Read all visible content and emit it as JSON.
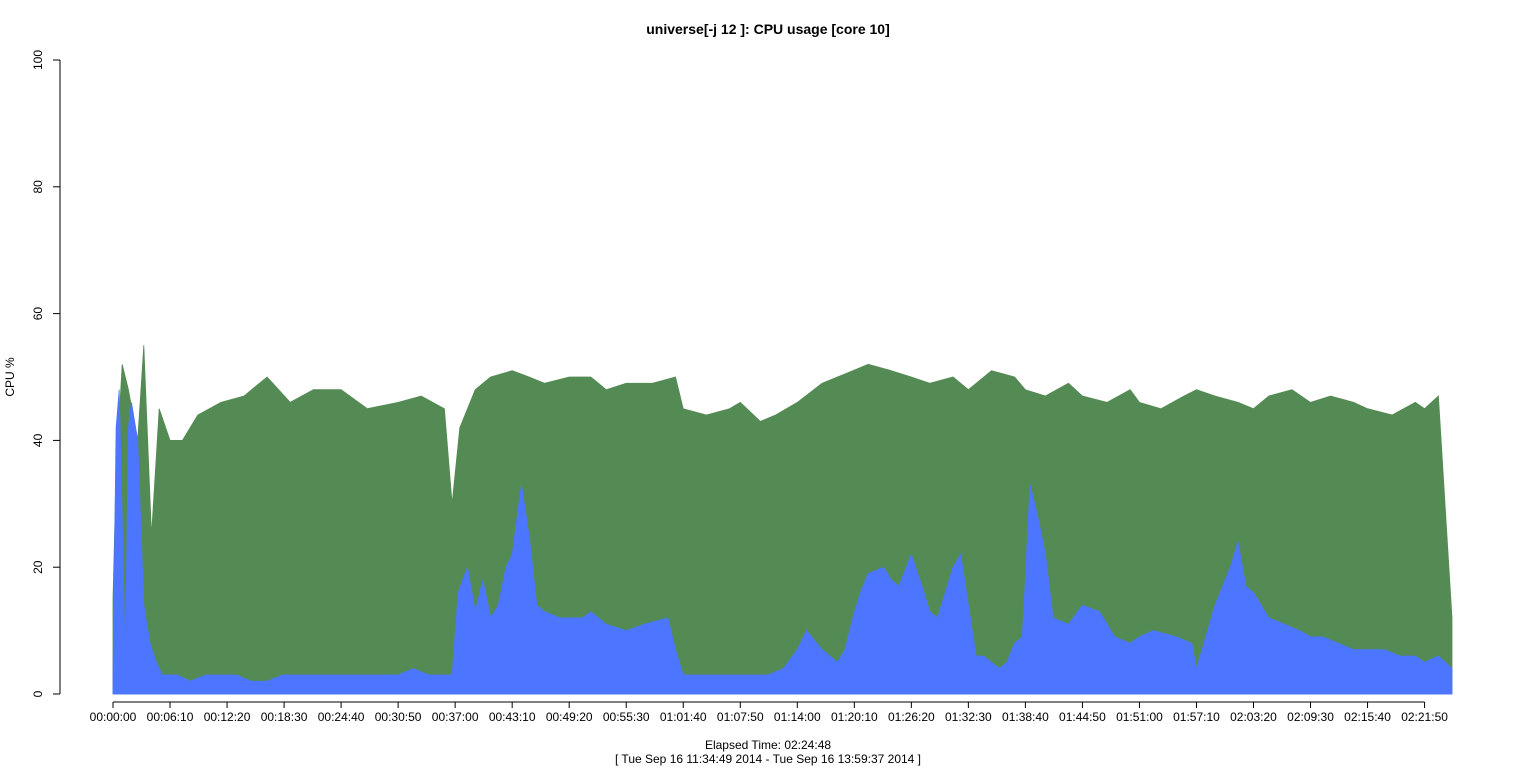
{
  "chart_data": {
    "type": "area",
    "title": "universe[-j 12  ]: CPU usage [core 10]",
    "xlabel": "Elapsed Time: 02:24:48",
    "xlabel_sub": "[ Tue Sep 16 11:34:49 2014 - Tue Sep 16 13:59:37 2014 ]",
    "ylabel": "CPU %",
    "ylim": [
      0,
      100
    ],
    "y_ticks": [
      0,
      20,
      40,
      60,
      80,
      100
    ],
    "x_unit": "seconds",
    "xlim": [
      0,
      8688
    ],
    "x_tick_labels": [
      "00:00:00",
      "00:06:10",
      "00:12:20",
      "00:18:30",
      "00:24:40",
      "00:30:50",
      "00:37:00",
      "00:43:10",
      "00:49:20",
      "00:55:30",
      "01:01:40",
      "01:07:50",
      "01:14:00",
      "01:20:10",
      "01:26:20",
      "01:32:30",
      "01:38:40",
      "01:44:50",
      "01:51:00",
      "01:57:10",
      "02:03:20",
      "02:09:30",
      "02:15:40",
      "02:21:50"
    ],
    "x_ticks_seconds": [
      0,
      370,
      740,
      1110,
      1480,
      1850,
      2220,
      2590,
      2960,
      3330,
      3700,
      4070,
      4440,
      4810,
      5180,
      5550,
      5920,
      6290,
      6660,
      7030,
      7400,
      7770,
      8140,
      8510
    ],
    "grid": false,
    "series": [
      {
        "name": "",
        "color": "#548b54",
        "x": [
          0,
          20,
          60,
          100,
          160,
          200,
          250,
          300,
          370,
          450,
          550,
          700,
          850,
          1000,
          1150,
          1300,
          1480,
          1650,
          1850,
          2000,
          2150,
          2200,
          2250,
          2350,
          2450,
          2590,
          2700,
          2800,
          2960,
          3100,
          3200,
          3330,
          3500,
          3650,
          3700,
          3850,
          4000,
          4070,
          4200,
          4300,
          4440,
          4600,
          4800,
          4900,
          5050,
          5180,
          5300,
          5450,
          5550,
          5700,
          5850,
          5920,
          6050,
          6200,
          6290,
          6450,
          6600,
          6660,
          6800,
          6950,
          7030,
          7150,
          7300,
          7400,
          7500,
          7650,
          7770,
          7900,
          8050,
          8140,
          8300,
          8450,
          8510,
          8600,
          8688
        ],
        "values": [
          15,
          35,
          52,
          48,
          40,
          55,
          25,
          45,
          40,
          40,
          44,
          46,
          47,
          50,
          46,
          48,
          48,
          45,
          46,
          47,
          45,
          30,
          42,
          48,
          50,
          51,
          50,
          49,
          50,
          50,
          48,
          49,
          49,
          50,
          45,
          44,
          45,
          46,
          43,
          44,
          46,
          49,
          51,
          52,
          51,
          50,
          49,
          50,
          48,
          51,
          50,
          48,
          47,
          49,
          47,
          46,
          48,
          46,
          45,
          47,
          48,
          47,
          46,
          45,
          47,
          48,
          46,
          47,
          46,
          45,
          44,
          46,
          45,
          47,
          12
        ]
      },
      {
        "name": "",
        "color": "#4c76ff",
        "x": [
          0,
          20,
          40,
          60,
          80,
          100,
          120,
          160,
          200,
          240,
          280,
          320,
          370,
          420,
          500,
          600,
          700,
          800,
          900,
          1000,
          1100,
          1200,
          1300,
          1400,
          1480,
          1600,
          1700,
          1800,
          1850,
          1950,
          2050,
          2150,
          2200,
          2240,
          2300,
          2350,
          2400,
          2450,
          2500,
          2550,
          2590,
          2650,
          2700,
          2750,
          2800,
          2900,
          2960,
          3050,
          3100,
          3200,
          3330,
          3450,
          3600,
          3650,
          3700,
          3750,
          3800,
          3900,
          4000,
          4070,
          4150,
          4250,
          4350,
          4440,
          4500,
          4600,
          4700,
          4750,
          4800,
          4850,
          4900,
          5000,
          5050,
          5100,
          5180,
          5250,
          5300,
          5350,
          5400,
          5450,
          5500,
          5550,
          5600,
          5650,
          5700,
          5750,
          5800,
          5850,
          5900,
          5920,
          5950,
          6000,
          6050,
          6100,
          6200,
          6290,
          6400,
          6500,
          6600,
          6660,
          6750,
          6900,
          7000,
          7030,
          7150,
          7200,
          7250,
          7300,
          7350,
          7400,
          7500,
          7600,
          7700,
          7770,
          7850,
          7950,
          8050,
          8140,
          8250,
          8350,
          8450,
          8510,
          8600,
          8688
        ],
        "values": [
          3,
          42,
          48,
          28,
          5,
          42,
          46,
          40,
          14,
          8,
          5,
          3,
          3,
          3,
          2,
          3,
          3,
          3,
          2,
          2,
          3,
          3,
          3,
          3,
          3,
          3,
          3,
          3,
          3,
          4,
          3,
          3,
          3,
          16,
          20,
          13,
          18,
          12,
          14,
          20,
          22,
          33,
          25,
          14,
          13,
          12,
          12,
          12,
          13,
          11,
          10,
          11,
          12,
          7,
          3,
          3,
          3,
          3,
          3,
          3,
          3,
          3,
          4,
          7,
          10,
          7,
          5,
          7,
          12,
          16,
          19,
          20,
          18,
          17,
          22,
          17,
          13,
          12,
          16,
          20,
          22,
          14,
          6,
          6,
          5,
          4,
          5,
          8,
          9,
          18,
          33,
          28,
          22,
          12,
          11,
          14,
          13,
          9,
          8,
          9,
          10,
          9,
          8,
          4,
          14,
          17,
          20,
          24,
          17,
          16,
          12,
          11,
          10,
          9,
          9,
          8,
          7,
          7,
          7,
          6,
          6,
          5,
          6,
          4
        ]
      }
    ]
  }
}
